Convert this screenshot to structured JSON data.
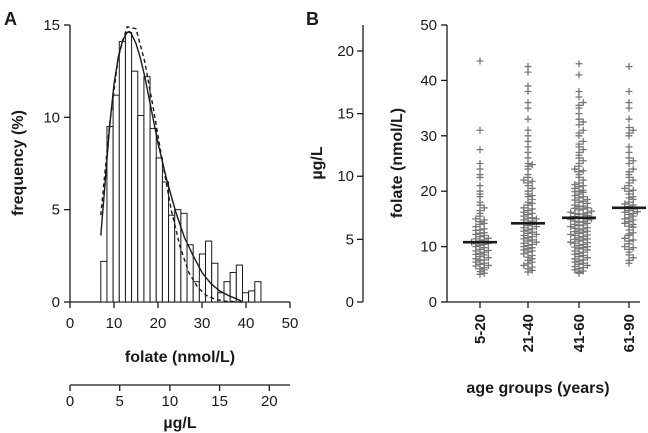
{
  "colors": {
    "ink": "#1a1a1a",
    "bar_fill": "#ffffff",
    "marker": "#777777"
  },
  "chart_data": [
    {
      "panel_label": "A",
      "type": "bar",
      "ylabel": "frequency (%)",
      "xlabel": "folate (nmol/L)",
      "secondary_xlabel": "µg/L",
      "xlim": [
        0,
        50
      ],
      "ylim": [
        0,
        15
      ],
      "xticks": [
        "0",
        "10",
        "20",
        "30",
        "40",
        "50"
      ],
      "yticks": [
        "0",
        "5",
        "10",
        "15"
      ],
      "secondary_xticks": [
        "0",
        "5",
        "10",
        "15",
        "20"
      ],
      "secondary_xtick_positions_nmol": [
        0,
        11.3,
        22.7,
        34.0,
        45.3
      ],
      "bin_width": 1.4,
      "bin_starts": [
        7.0,
        8.4,
        9.8,
        11.2,
        12.6,
        14.0,
        15.4,
        16.8,
        18.2,
        19.6,
        21.0,
        22.4,
        23.8,
        25.2,
        26.6,
        28.0,
        29.4,
        30.8,
        32.2,
        33.6,
        35.0,
        36.4,
        37.8,
        39.2,
        40.6,
        42.0
      ],
      "values": [
        2.2,
        9.5,
        11.2,
        14.1,
        14.6,
        12.5,
        10.1,
        12.2,
        9.4,
        7.8,
        6.5,
        4.7,
        5.0,
        4.8,
        3.1,
        1.1,
        2.6,
        3.3,
        2.1,
        0.5,
        1.1,
        1.6,
        2.0,
        0.5,
        0.6,
        1.1
      ],
      "series": [
        {
          "style": "solid",
          "x": [
            7,
            8,
            9,
            10,
            11,
            12,
            13,
            13.5,
            14,
            15,
            16,
            17,
            18,
            20,
            22,
            24,
            26,
            28,
            30,
            32,
            34,
            36,
            38,
            39
          ],
          "y": [
            3.6,
            6.5,
            9.5,
            11.8,
            13.3,
            14.2,
            14.6,
            14.65,
            14.5,
            14.0,
            13.2,
            12.2,
            11.0,
            8.6,
            6.6,
            4.9,
            3.5,
            2.5,
            1.6,
            1.0,
            0.6,
            0.35,
            0.15,
            0.05
          ]
        },
        {
          "style": "dashed",
          "x": [
            7,
            9,
            11,
            13,
            15,
            17,
            19,
            21,
            23,
            25,
            27,
            29,
            31,
            33,
            35,
            37,
            39
          ],
          "y": [
            4.7,
            9.6,
            13.3,
            14.9,
            14.8,
            13.0,
            10.4,
            7.6,
            5.0,
            3.0,
            1.6,
            0.8,
            0.35,
            0.15,
            0.05,
            0.02,
            0.0
          ]
        }
      ]
    },
    {
      "panel_label": "B",
      "type": "scatter",
      "xlabel": "age groups (years)",
      "ylabel": "folate (nmol/L)",
      "secondary_ylabel": "µg/L",
      "categories": [
        "5-20",
        "21-40",
        "41-60",
        "61-90"
      ],
      "ylim": [
        0,
        50
      ],
      "yticks": [
        "0",
        "10",
        "20",
        "30",
        "40",
        "50"
      ],
      "secondary_yticks": [
        "0",
        "5",
        "10",
        "15",
        "20"
      ],
      "secondary_ytick_positions_nmol": [
        0,
        11.3,
        22.7,
        34.0,
        45.3
      ],
      "medians": [
        10.8,
        14.2,
        15.2,
        17.0
      ],
      "series": [
        {
          "values": [
            43.5,
            31.0,
            27.5,
            25.0,
            24.0,
            23.0,
            22.5,
            21.0,
            20.0,
            19.5,
            19.0,
            18.0,
            17.5,
            17.0,
            16.5,
            16.0,
            15.5,
            15.0,
            14.8,
            14.5,
            14.0,
            13.6,
            13.2,
            12.9,
            12.5,
            12.2,
            12.0,
            11.8,
            11.5,
            11.2,
            11.0,
            10.8,
            10.5,
            10.2,
            10.0,
            9.8,
            9.5,
            9.3,
            9.0,
            8.8,
            8.5,
            8.2,
            8.0,
            7.8,
            7.5,
            7.2,
            7.0,
            6.8,
            6.5,
            6.2,
            6.0,
            5.8,
            5.5,
            5.2,
            5.0,
            9.2,
            10.6,
            12.4,
            14.2,
            8.6,
            11.4,
            10.4,
            7.6,
            6.6,
            13.0
          ]
        },
        {
          "values": [
            42.5,
            41.5,
            39.0,
            38.0,
            36.0,
            35.0,
            33.0,
            31.0,
            30.0,
            29.0,
            28.0,
            27.0,
            26.0,
            25.0,
            24.5,
            24.0,
            23.0,
            22.5,
            22.0,
            21.5,
            21.0,
            20.5,
            20.0,
            19.5,
            19.0,
            18.5,
            18.0,
            17.5,
            17.0,
            16.8,
            16.5,
            16.2,
            16.0,
            15.8,
            15.5,
            15.2,
            15.0,
            14.8,
            14.6,
            14.4,
            14.2,
            14.0,
            13.8,
            13.6,
            13.4,
            13.2,
            13.0,
            12.8,
            12.6,
            12.4,
            12.2,
            12.0,
            11.8,
            11.6,
            11.4,
            11.2,
            11.0,
            10.8,
            10.6,
            10.4,
            10.2,
            10.0,
            9.8,
            9.6,
            9.4,
            9.2,
            9.0,
            8.7,
            8.4,
            8.1,
            7.8,
            7.5,
            7.2,
            6.9,
            6.6,
            6.3,
            6.0,
            5.7,
            5.4,
            15.1,
            17.8,
            19.2,
            21.8,
            24.8
          ]
        },
        {
          "values": [
            43.0,
            41.0,
            38.0,
            37.0,
            36.0,
            35.5,
            35.0,
            34.0,
            33.0,
            32.5,
            32.0,
            31.0,
            30.5,
            30.0,
            29.0,
            28.5,
            28.0,
            27.5,
            27.0,
            26.5,
            26.0,
            25.5,
            25.0,
            24.5,
            24.0,
            23.5,
            23.0,
            22.5,
            22.0,
            21.5,
            21.0,
            20.8,
            20.5,
            20.2,
            20.0,
            19.8,
            19.5,
            19.2,
            19.0,
            18.8,
            18.5,
            18.2,
            18.0,
            17.8,
            17.5,
            17.2,
            17.0,
            16.8,
            16.6,
            16.4,
            16.2,
            16.0,
            15.8,
            15.6,
            15.4,
            15.2,
            15.0,
            14.8,
            14.6,
            14.4,
            14.2,
            14.0,
            13.8,
            13.6,
            13.4,
            13.2,
            13.0,
            12.8,
            12.6,
            12.4,
            12.2,
            12.0,
            11.8,
            11.6,
            11.4,
            11.2,
            11.0,
            10.8,
            10.6,
            10.4,
            10.2,
            10.0,
            9.8,
            9.6,
            9.4,
            9.2,
            9.0,
            8.8,
            8.6,
            8.4,
            8.2,
            8.0,
            7.8,
            7.6,
            7.4,
            7.2,
            7.0,
            6.8,
            6.6,
            6.4,
            6.2,
            6.0,
            5.8,
            5.6,
            5.4,
            5.2,
            15.3,
            16.9,
            18.4,
            19.9,
            21.2,
            23.7,
            14.9,
            13.3,
            12.1,
            11.3,
            10.7,
            9.9,
            17.3,
            16.1,
            15.9,
            14.5,
            13.9,
            12.7
          ]
        },
        {
          "values": [
            42.5,
            38.0,
            36.0,
            35.0,
            33.0,
            31.5,
            31.0,
            30.5,
            30.0,
            28.0,
            27.0,
            26.0,
            25.5,
            25.0,
            24.0,
            23.5,
            23.0,
            22.5,
            22.0,
            21.5,
            21.0,
            20.5,
            20.0,
            19.5,
            19.0,
            18.5,
            18.0,
            17.5,
            17.2,
            17.0,
            16.8,
            16.5,
            16.2,
            16.0,
            15.8,
            15.5,
            15.2,
            15.0,
            14.8,
            14.5,
            14.2,
            14.0,
            13.5,
            13.0,
            12.5,
            12.0,
            11.5,
            11.0,
            10.5,
            10.0,
            9.5,
            9.0,
            8.5,
            8.0,
            7.5,
            7.0,
            18.8,
            20.2,
            17.7,
            16.3,
            13.7,
            12.3,
            11.2,
            9.8
          ]
        }
      ]
    }
  ]
}
